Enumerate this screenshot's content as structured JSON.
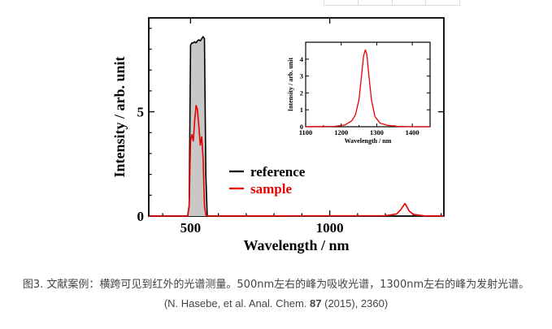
{
  "chart_data": [
    {
      "type": "line",
      "title": "",
      "xlabel": "Wavelength / nm",
      "ylabel": "Intensity / arb. unit",
      "xlim": [
        350,
        1410
      ],
      "ylim": [
        0,
        9.5
      ],
      "xticks": [
        500,
        1000
      ],
      "yticks": [
        0,
        5
      ],
      "legend": {
        "placement": "center-bottom"
      },
      "grid": false,
      "series": [
        {
          "name": "reference",
          "color": "#000000",
          "fill": "#c8c8c8",
          "x": [
            480,
            490,
            495,
            500,
            505,
            510,
            515,
            520,
            525,
            530,
            535,
            540,
            545,
            550,
            555,
            560,
            570
          ],
          "y": [
            0,
            0.02,
            0.5,
            8.2,
            8.3,
            8.3,
            8.35,
            8.3,
            8.4,
            8.45,
            8.4,
            8.5,
            8.6,
            8.5,
            2.0,
            0.02,
            0
          ]
        },
        {
          "name": "sample",
          "color": "#e60000",
          "x": [
            350,
            480,
            490,
            495,
            500,
            505,
            510,
            515,
            520,
            525,
            530,
            535,
            540,
            545,
            550,
            555,
            560,
            570,
            1200,
            1240,
            1255,
            1265,
            1270,
            1275,
            1285,
            1300,
            1340,
            1410
          ],
          "y": [
            0,
            0,
            0.02,
            0.5,
            3.6,
            3.9,
            3.6,
            4.6,
            5.3,
            5.1,
            4.3,
            3.4,
            3.8,
            2.8,
            0.5,
            0.05,
            0.02,
            0,
            0.02,
            0.1,
            0.3,
            0.5,
            0.6,
            0.5,
            0.25,
            0.08,
            0.01,
            0
          ]
        }
      ]
    },
    {
      "type": "line",
      "title": "",
      "xlabel": "Wavelength / nm",
      "ylabel": "Intensity / arb. unit",
      "xlim": [
        1100,
        1450
      ],
      "ylim": [
        0,
        5
      ],
      "xticks": [
        1100,
        1200,
        1300,
        1400
      ],
      "yticks": [
        0,
        1,
        2,
        3,
        4
      ],
      "series": [
        {
          "color": "#e60000",
          "x": [
            1100,
            1180,
            1210,
            1230,
            1240,
            1250,
            1258,
            1263,
            1268,
            1272,
            1278,
            1285,
            1295,
            1310,
            1330,
            1360,
            1400,
            1450
          ],
          "y": [
            0,
            0.02,
            0.1,
            0.35,
            0.7,
            1.6,
            3.2,
            4.2,
            4.55,
            4.3,
            3.0,
            1.6,
            0.6,
            0.2,
            0.08,
            0.02,
            0,
            0
          ]
        }
      ]
    }
  ],
  "caption": {
    "line1": "图3. 文献案例：横跨可见到红外的光谱测量。500nm左右的峰为吸收光谱，1300nm左右的峰为发射光谱。",
    "line2_prefix": "(N. Hasebe, et al. Anal. Chem. ",
    "line2_bold": "87",
    "line2_suffix": " (2015), 2360)"
  }
}
